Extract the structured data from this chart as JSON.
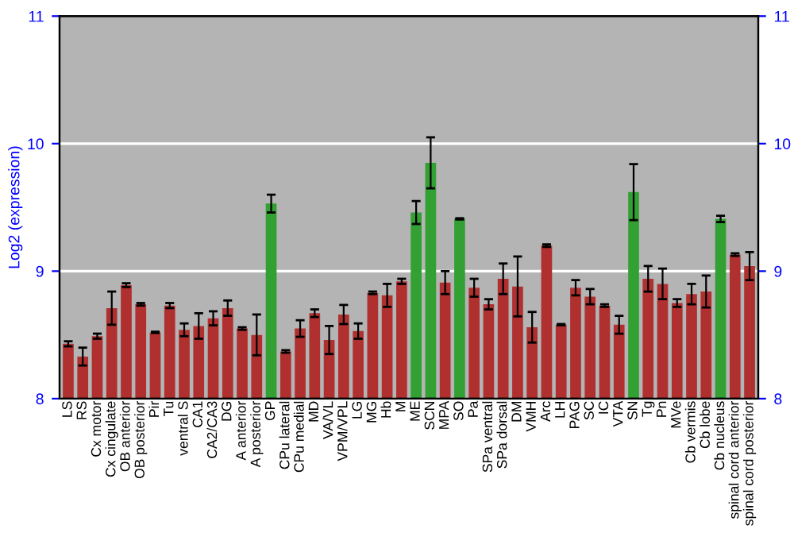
{
  "chart_data": {
    "type": "bar",
    "ylabel": "Log2 (expression)",
    "categories": [
      "LS",
      "RS",
      "Cx motor",
      "Cx cingulate",
      "OB anterior",
      "OB posterior",
      "Pir",
      "Tu",
      "ventral S",
      "CA1",
      "CA2/CA3",
      "DG",
      "A anterior",
      "A posterior",
      "GP",
      "CPu lateral",
      "CPu medial",
      "MD",
      "VA/VL",
      "VPM/VPL",
      "LG",
      "MG",
      "Hb",
      "M",
      "ME",
      "SCN",
      "MPA",
      "SO",
      "Pa",
      "SPa ventral",
      "SPa dorsal",
      "DM",
      "VMH",
      "Arc",
      "LH",
      "PAG",
      "SC",
      "IC",
      "VTA",
      "SN",
      "Tg",
      "Pn",
      "MVe",
      "Cb vermis",
      "Cb lobe",
      "Cb nucleus",
      "spinal cord anterior",
      "spinal cord posterior"
    ],
    "values": [
      8.43,
      8.33,
      8.49,
      8.71,
      8.89,
      8.74,
      8.52,
      8.73,
      8.54,
      8.57,
      8.63,
      8.71,
      8.55,
      8.5,
      9.53,
      8.37,
      8.55,
      8.67,
      8.46,
      8.66,
      8.53,
      8.83,
      8.81,
      8.92,
      9.46,
      9.85,
      8.91,
      9.41,
      8.87,
      8.74,
      8.94,
      8.88,
      8.56,
      9.2,
      8.58,
      8.87,
      8.8,
      8.73,
      8.58,
      9.62,
      8.94,
      8.9,
      8.75,
      8.82,
      8.84,
      9.41,
      9.13,
      9.04
    ],
    "errors": [
      0.02,
      0.07,
      0.02,
      0.13,
      0.015,
      0.01,
      0.005,
      0.02,
      0.05,
      0.1,
      0.055,
      0.06,
      0.01,
      0.16,
      0.07,
      0.01,
      0.065,
      0.03,
      0.11,
      0.075,
      0.06,
      0.01,
      0.09,
      0.02,
      0.09,
      0.2,
      0.09,
      0.005,
      0.07,
      0.04,
      0.12,
      0.235,
      0.12,
      0.01,
      0.005,
      0.06,
      0.06,
      0.01,
      0.07,
      0.22,
      0.1,
      0.12,
      0.03,
      0.08,
      0.125,
      0.025,
      0.01,
      0.11
    ],
    "colors": [
      "#b03030",
      "#b03030",
      "#b03030",
      "#b03030",
      "#b03030",
      "#b03030",
      "#b03030",
      "#b03030",
      "#b03030",
      "#b03030",
      "#b03030",
      "#b03030",
      "#b03030",
      "#b03030",
      "#33a033",
      "#b03030",
      "#b03030",
      "#b03030",
      "#b03030",
      "#b03030",
      "#b03030",
      "#b03030",
      "#b03030",
      "#b03030",
      "#33a033",
      "#33a033",
      "#b03030",
      "#33a033",
      "#b03030",
      "#b03030",
      "#b03030",
      "#b03030",
      "#b03030",
      "#b03030",
      "#b03030",
      "#b03030",
      "#b03030",
      "#b03030",
      "#b03030",
      "#33a033",
      "#b03030",
      "#b03030",
      "#b03030",
      "#b03030",
      "#b03030",
      "#33a033",
      "#b03030",
      "#b03030"
    ],
    "ylim": [
      8,
      11
    ],
    "yticks": [
      8,
      9,
      10,
      11
    ],
    "y2lim": [
      8,
      11
    ],
    "y2ticks": [
      8,
      9,
      10,
      11
    ],
    "grid": "y"
  }
}
